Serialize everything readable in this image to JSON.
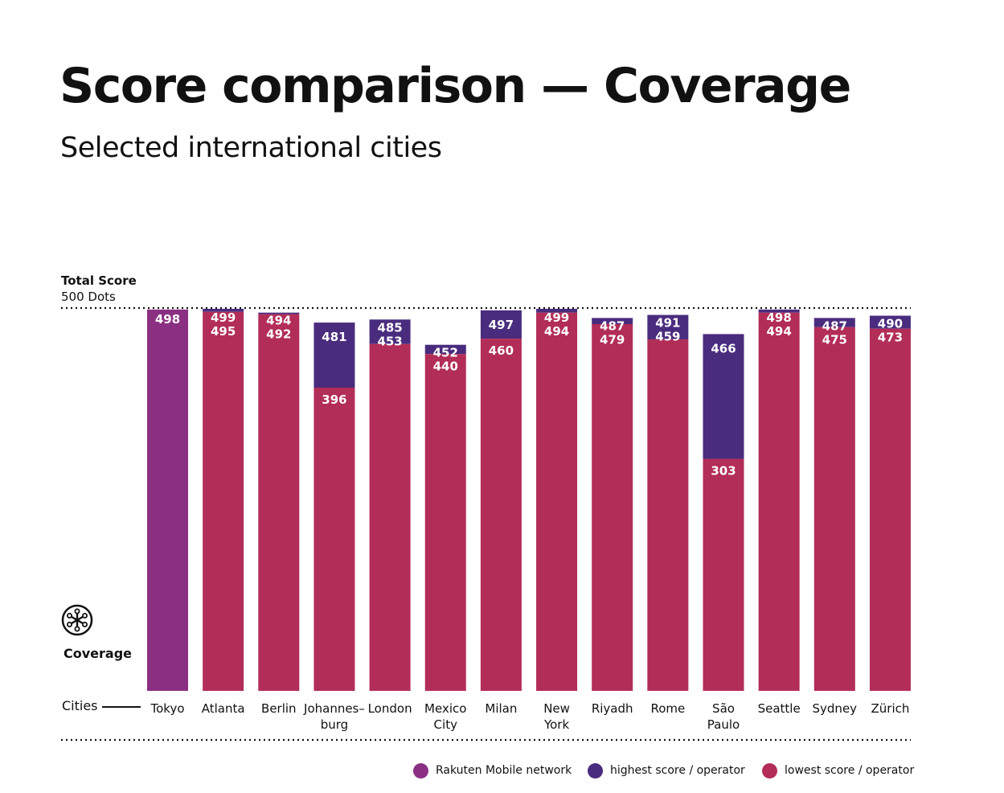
{
  "header": {
    "title": "Score comparison  —  Coverage",
    "subtitle": "Selected international cities"
  },
  "axis": {
    "y_title": "Total Score",
    "y_subtitle": "500 Dots",
    "category_icon": "coverage-icon",
    "category_label": "Coverage",
    "x_title": "Cities"
  },
  "legend": {
    "rakuten": "Rakuten Mobile network",
    "highest": "highest score / operator",
    "lowest": "lowest score / operator"
  },
  "colors": {
    "rakuten": "#8b2f83",
    "highest": "#4a2c7e",
    "lowest": "#b22d57",
    "text": "#111111"
  },
  "chart_data": {
    "type": "bar",
    "ylim": [
      0,
      500
    ],
    "max_line": 500,
    "categories": [
      "Tokyo",
      "Atlanta",
      "Berlin",
      "Johannes–\nburg",
      "London",
      "Mexico\nCity",
      "Milan",
      "New\nYork",
      "Riyadh",
      "Rome",
      "São\nPaulo",
      "Seattle",
      "Sydney",
      "Zürich"
    ],
    "series": [
      {
        "name": "Rakuten Mobile network",
        "values": [
          498,
          null,
          null,
          null,
          null,
          null,
          null,
          null,
          null,
          null,
          null,
          null,
          null,
          null
        ]
      },
      {
        "name": "highest score / operator",
        "values": [
          null,
          499,
          494,
          481,
          485,
          452,
          497,
          499,
          487,
          491,
          466,
          498,
          487,
          490
        ]
      },
      {
        "name": "lowest score / operator",
        "values": [
          null,
          495,
          492,
          396,
          453,
          440,
          460,
          494,
          479,
          459,
          303,
          494,
          475,
          473
        ]
      }
    ]
  }
}
